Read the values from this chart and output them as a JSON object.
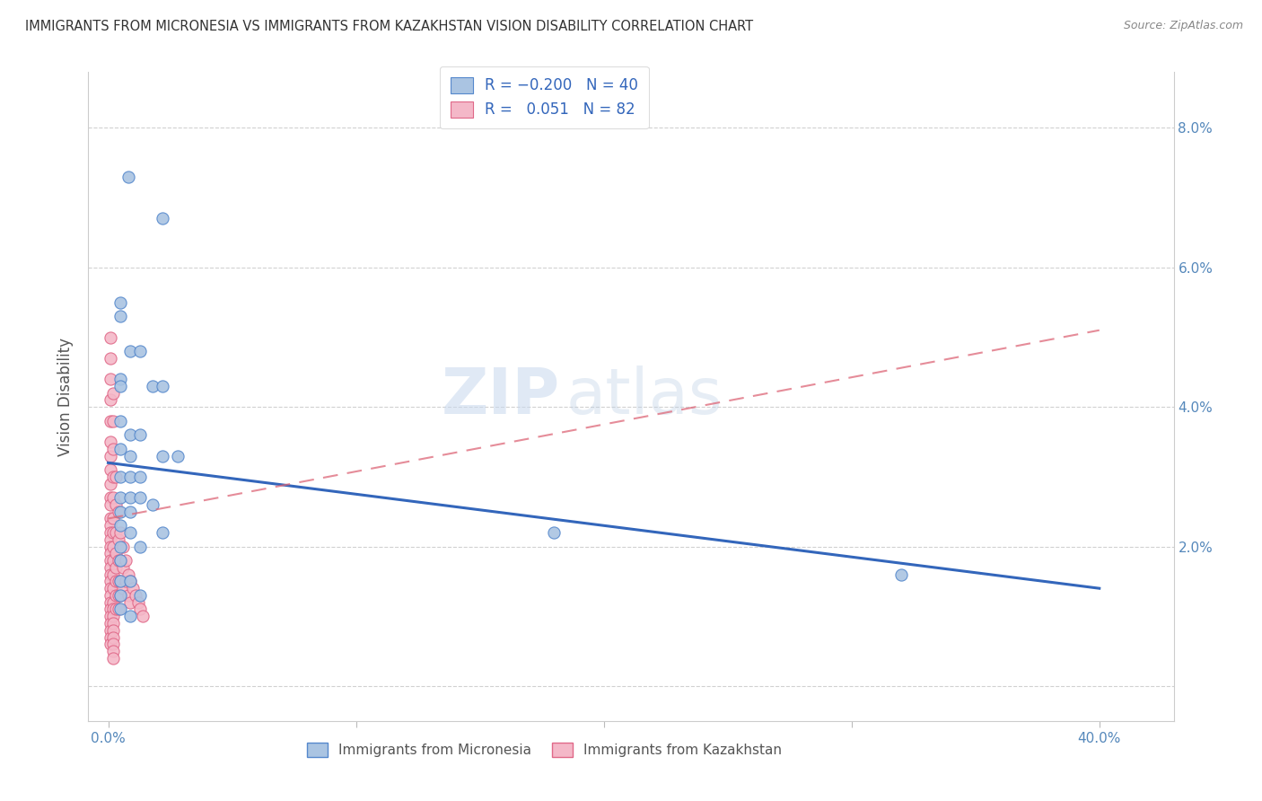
{
  "title": "IMMIGRANTS FROM MICRONESIA VS IMMIGRANTS FROM KAZAKHSTAN VISION DISABILITY CORRELATION CHART",
  "source": "Source: ZipAtlas.com",
  "ylabel": "Vision Disability",
  "x_ticks": [
    0.0,
    0.1,
    0.2,
    0.3,
    0.4
  ],
  "x_tick_labels": [
    "0.0%",
    "",
    "",
    "",
    "40.0%"
  ],
  "y_ticks": [
    0.0,
    0.02,
    0.04,
    0.06,
    0.08
  ],
  "y_tick_labels_left": [
    "",
    "",
    "",
    "",
    ""
  ],
  "y_tick_labels_right": [
    "",
    "2.0%",
    "4.0%",
    "6.0%",
    "8.0%"
  ],
  "xlim": [
    -0.008,
    0.43
  ],
  "ylim": [
    -0.005,
    0.088
  ],
  "micronesia_color": "#aac4e2",
  "micronesia_edge_color": "#5588cc",
  "kazakhstan_color": "#f4b8c8",
  "kazakhstan_edge_color": "#e06888",
  "trend_micronesia_color": "#3366bb",
  "trend_kazakhstan_color": "#dd6677",
  "watermark_zip": "ZIP",
  "watermark_atlas": "atlas",
  "mic_trend_x0": 0.0,
  "mic_trend_y0": 0.032,
  "mic_trend_x1": 0.4,
  "mic_trend_y1": 0.014,
  "kaz_trend_x0": 0.0,
  "kaz_trend_y0": 0.024,
  "kaz_trend_x1": 0.4,
  "kaz_trend_y1": 0.051,
  "micronesia_x": [
    0.008,
    0.022,
    0.005,
    0.005,
    0.009,
    0.013,
    0.005,
    0.005,
    0.018,
    0.022,
    0.005,
    0.009,
    0.013,
    0.005,
    0.009,
    0.022,
    0.028,
    0.005,
    0.009,
    0.013,
    0.005,
    0.009,
    0.013,
    0.018,
    0.005,
    0.009,
    0.005,
    0.009,
    0.022,
    0.18,
    0.005,
    0.013,
    0.005,
    0.32,
    0.005,
    0.009,
    0.005,
    0.013,
    0.005,
    0.009
  ],
  "micronesia_y": [
    0.073,
    0.067,
    0.055,
    0.053,
    0.048,
    0.048,
    0.044,
    0.043,
    0.043,
    0.043,
    0.038,
    0.036,
    0.036,
    0.034,
    0.033,
    0.033,
    0.033,
    0.03,
    0.03,
    0.03,
    0.027,
    0.027,
    0.027,
    0.026,
    0.025,
    0.025,
    0.023,
    0.022,
    0.022,
    0.022,
    0.02,
    0.02,
    0.018,
    0.016,
    0.015,
    0.015,
    0.013,
    0.013,
    0.011,
    0.01
  ],
  "kazakhstan_x": [
    0.001,
    0.001,
    0.001,
    0.001,
    0.001,
    0.001,
    0.001,
    0.001,
    0.001,
    0.001,
    0.001,
    0.001,
    0.001,
    0.001,
    0.001,
    0.001,
    0.001,
    0.001,
    0.001,
    0.001,
    0.001,
    0.001,
    0.001,
    0.001,
    0.001,
    0.001,
    0.001,
    0.001,
    0.001,
    0.001,
    0.002,
    0.002,
    0.002,
    0.002,
    0.002,
    0.002,
    0.002,
    0.002,
    0.002,
    0.002,
    0.002,
    0.002,
    0.002,
    0.002,
    0.002,
    0.002,
    0.002,
    0.002,
    0.002,
    0.002,
    0.003,
    0.003,
    0.003,
    0.003,
    0.003,
    0.003,
    0.003,
    0.003,
    0.004,
    0.004,
    0.004,
    0.004,
    0.004,
    0.004,
    0.005,
    0.005,
    0.005,
    0.005,
    0.006,
    0.006,
    0.006,
    0.007,
    0.007,
    0.008,
    0.008,
    0.009,
    0.009,
    0.01,
    0.011,
    0.012,
    0.013,
    0.014
  ],
  "kazakhstan_y": [
    0.05,
    0.047,
    0.044,
    0.041,
    0.038,
    0.035,
    0.033,
    0.031,
    0.029,
    0.027,
    0.026,
    0.024,
    0.023,
    0.022,
    0.021,
    0.02,
    0.019,
    0.018,
    0.017,
    0.016,
    0.015,
    0.014,
    0.013,
    0.012,
    0.011,
    0.01,
    0.009,
    0.008,
    0.007,
    0.006,
    0.042,
    0.038,
    0.034,
    0.03,
    0.027,
    0.024,
    0.022,
    0.02,
    0.018,
    0.016,
    0.014,
    0.012,
    0.011,
    0.01,
    0.009,
    0.008,
    0.007,
    0.006,
    0.005,
    0.004,
    0.03,
    0.026,
    0.022,
    0.019,
    0.017,
    0.015,
    0.013,
    0.011,
    0.025,
    0.021,
    0.018,
    0.015,
    0.013,
    0.011,
    0.022,
    0.018,
    0.015,
    0.013,
    0.02,
    0.017,
    0.014,
    0.018,
    0.015,
    0.016,
    0.013,
    0.015,
    0.012,
    0.014,
    0.013,
    0.012,
    0.011,
    0.01
  ]
}
